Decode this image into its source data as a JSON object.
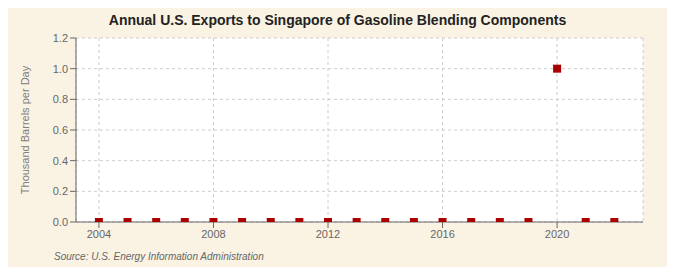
{
  "chart_data": {
    "type": "scatter",
    "title": "Annual U.S. Exports to Singapore of Gasoline Blending Components",
    "y_label": "Thousand Barrels per Day",
    "annotations": [
      "Source: U.S. Energy Information Administration"
    ],
    "x": [
      2004,
      2005,
      2006,
      2007,
      2008,
      2009,
      2010,
      2011,
      2012,
      2013,
      2014,
      2015,
      2016,
      2017,
      2018,
      2019,
      2020,
      2021,
      2022
    ],
    "values": [
      0.0,
      0.0,
      0.0,
      0.0,
      0.0,
      0.0,
      0.0,
      0.0,
      0.0,
      0.0,
      0.0,
      0.0,
      0.0,
      0.0,
      0.0,
      0.0,
      1.0,
      0.0,
      0.0
    ],
    "color": "#AA0000",
    "marker": "square",
    "xlim": [
      2003.2,
      2023.0
    ],
    "ylim": [
      0.0,
      1.2
    ],
    "xticks": [
      2004,
      2008,
      2012,
      2016,
      2020
    ],
    "yticks": [
      {
        "value": 0.0,
        "label": "0.0"
      },
      0.2,
      0.4,
      0.6,
      0.8,
      {
        "value": 1.0,
        "label": "1.0"
      },
      1.2
    ],
    "grid": true
  }
}
